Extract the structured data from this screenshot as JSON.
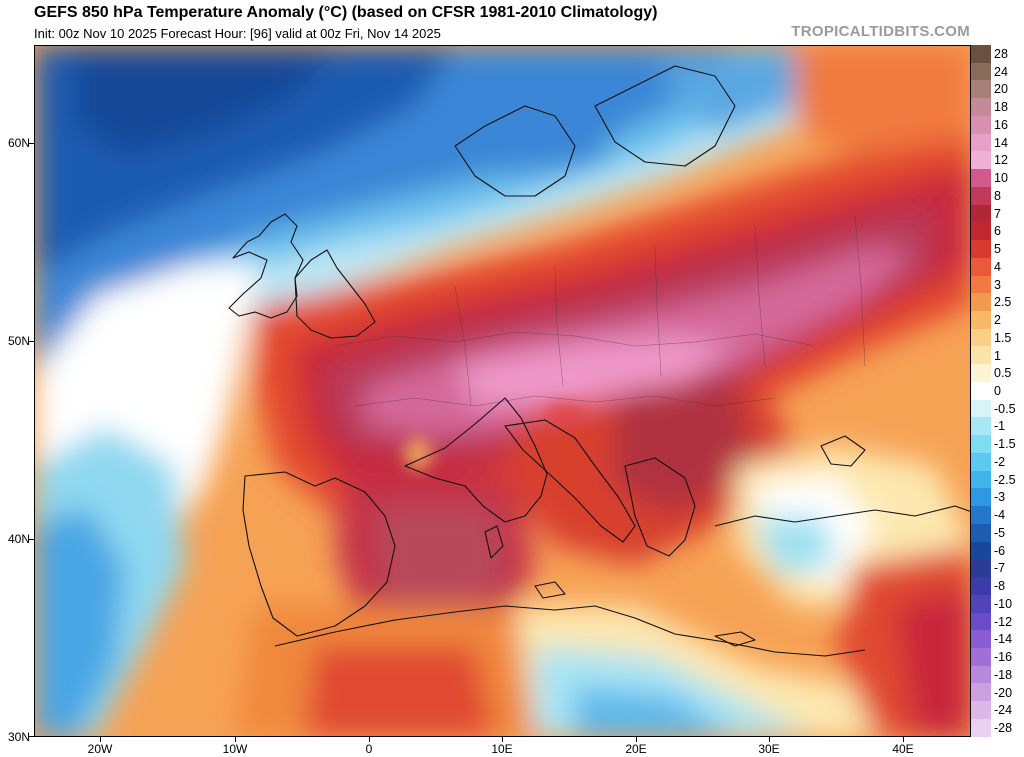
{
  "header": {
    "title": "GEFS 850 hPa Temperature Anomaly (°C) (based on CFSR 1981-2010 Climatology)",
    "subtitle": "Init: 00z Nov 10 2025   Forecast Hour: [96]   valid at 00z Fri, Nov 14 2025",
    "brand": "TROPICALTIDBITS.COM"
  },
  "axes": {
    "lat_labels": [
      "60N",
      "50N",
      "40N",
      "30N"
    ],
    "lon_labels": [
      "20W",
      "10W",
      "0",
      "10E",
      "20E",
      "30E",
      "40E"
    ]
  },
  "colorbar": {
    "labels": [
      "28",
      "24",
      "20",
      "18",
      "16",
      "14",
      "12",
      "10",
      "8",
      "7",
      "6",
      "5",
      "4",
      "3",
      "2.5",
      "2",
      "1.5",
      "1",
      "0.5",
      "0",
      "-0.5",
      "-1",
      "-1.5",
      "-2",
      "-2.5",
      "-3",
      "-4",
      "-5",
      "-6",
      "-7",
      "-8",
      "-10",
      "-12",
      "-14",
      "-16",
      "-18",
      "-20",
      "-24",
      "-28"
    ],
    "colors": [
      "#6b5040",
      "#8a6a58",
      "#a8807a",
      "#c48a9a",
      "#d890b0",
      "#e8a0c8",
      "#f0b0d8",
      "#d25a8a",
      "#c03a5a",
      "#b02838",
      "#c02830",
      "#d83a30",
      "#e85a38",
      "#f07a40",
      "#f49a50",
      "#f8b868",
      "#fad088",
      "#fce4a8",
      "#fef4d4",
      "#ffffff",
      "#d8f4f8",
      "#a8e8f4",
      "#80dcf0",
      "#5ccaf0",
      "#40b4ec",
      "#2e98e0",
      "#2478cc",
      "#1e5cb0",
      "#18489a",
      "#2c3c94",
      "#3c3ca8",
      "#5044b8",
      "#6a4cc8",
      "#8a5cd4",
      "#a070d8",
      "#b888dc",
      "#cca0e0",
      "#dcb8e8",
      "#e8d0f0"
    ]
  },
  "map": {
    "region": "Europe / North Atlantic / Mediterranean",
    "palette": {
      "deep_blue": "#1a4a9a",
      "blue": "#3a7cd0",
      "light_blue": "#8cd8f0",
      "white": "#ffffff",
      "cream": "#fde8b0",
      "orange": "#f4a050",
      "red_orange": "#e8552e",
      "red": "#c8283a",
      "dark_red": "#a8324a",
      "magenta": "#c85a88",
      "pink": "#e88ac0"
    }
  }
}
